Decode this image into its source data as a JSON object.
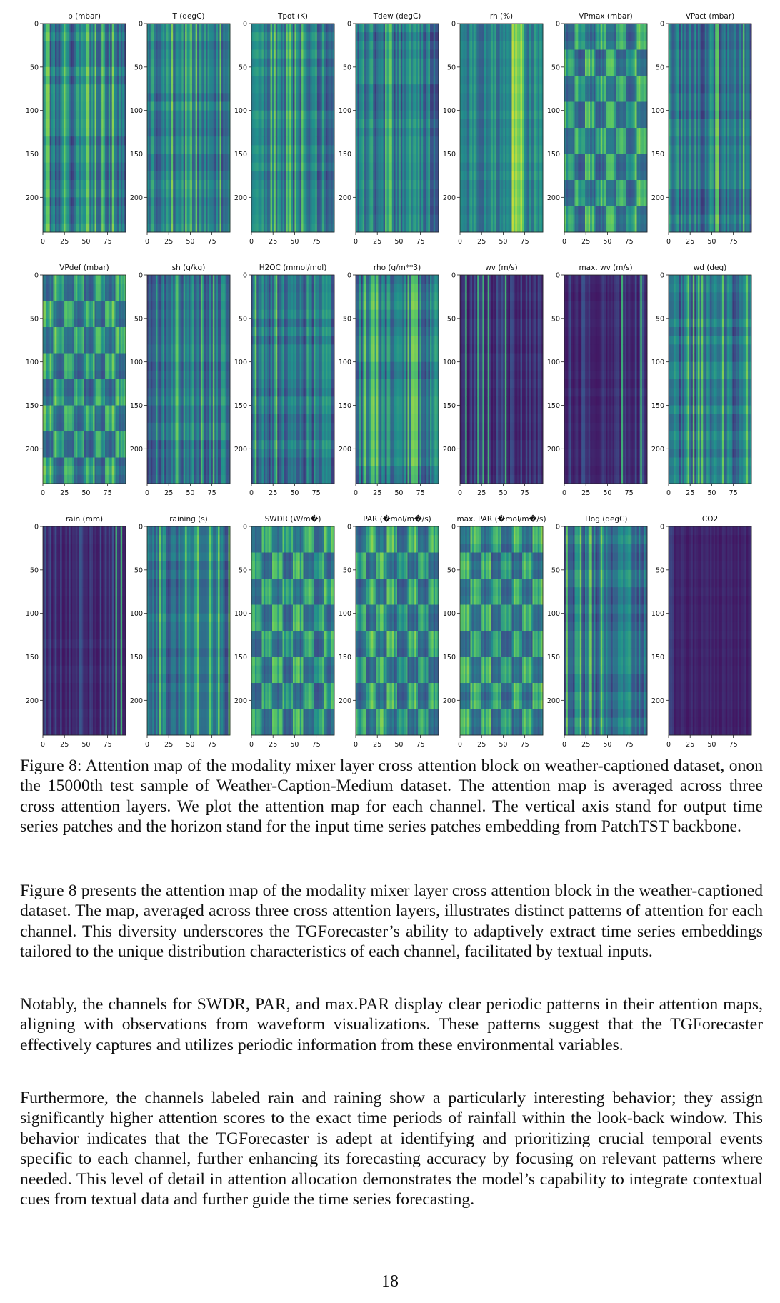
{
  "chart_data": {
    "type": "heatmap",
    "panels": [
      {
        "title": "p (mbar)",
        "pattern": "stripes",
        "seed": 1
      },
      {
        "title": "T (degC)",
        "pattern": "stripes",
        "seed": 2
      },
      {
        "title": "Tpot (K)",
        "pattern": "stripes",
        "seed": 3
      },
      {
        "title": "Tdew (degC)",
        "pattern": "stripes",
        "seed": 4
      },
      {
        "title": "rh (%)",
        "pattern": "bright-band",
        "seed": 5
      },
      {
        "title": "VPmax (mbar)",
        "pattern": "checker",
        "seed": 6
      },
      {
        "title": "VPact (mbar)",
        "pattern": "stripes",
        "seed": 7
      },
      {
        "title": "VPdef (mbar)",
        "pattern": "checker",
        "seed": 8
      },
      {
        "title": "sh (g/kg)",
        "pattern": "stripes",
        "seed": 9
      },
      {
        "title": "H2OC (mmol/mol)",
        "pattern": "stripes",
        "seed": 10
      },
      {
        "title": "rho (g/m**3)",
        "pattern": "stripes",
        "seed": 11
      },
      {
        "title": "wv (m/s)",
        "pattern": "dark-stripes",
        "seed": 12
      },
      {
        "title": "max. wv (m/s)",
        "pattern": "dark-stripes",
        "seed": 13
      },
      {
        "title": "wd (deg)",
        "pattern": "stripes",
        "seed": 14
      },
      {
        "title": "rain (mm)",
        "pattern": "dark-stripes",
        "seed": 15
      },
      {
        "title": "raining (s)",
        "pattern": "stripes",
        "seed": 16
      },
      {
        "title": "SWDR (W/m�)",
        "pattern": "checker",
        "seed": 17
      },
      {
        "title": "PAR (�mol/m�/s)",
        "pattern": "checker",
        "seed": 18
      },
      {
        "title": "max. PAR (�mol/m�/s)",
        "pattern": "checker",
        "seed": 19
      },
      {
        "title": "Tlog (degC)",
        "pattern": "stripes",
        "seed": 20
      },
      {
        "title": "CO2",
        "pattern": "dark",
        "seed": 21
      }
    ],
    "rows": 3,
    "cols": 7,
    "x_ticks": [
      "0",
      "25",
      "50",
      "75"
    ],
    "x_tick_values": [
      0,
      25,
      50,
      75
    ],
    "xlim": [
      0,
      96
    ],
    "y_ticks": [
      "0",
      "50",
      "100",
      "150",
      "200"
    ],
    "y_tick_values": [
      0,
      50,
      100,
      150,
      200
    ],
    "ylim": [
      0,
      240
    ],
    "colormap": "viridis"
  },
  "caption": "Figure 8: Attention map of the modality mixer layer cross attention block on weather-captioned dataset, onon the 15000th test sample of Weather-Caption-Medium dataset. The attention map is averaged across three cross attention layers. We plot the attention map for each channel. The vertical axis stand for output time series patches and the horizon stand for the input time series patches embedding from PatchTST backbone.",
  "paragraphs": [
    "Figure 8 presents the attention map of the modality mixer layer cross attention block in the weather-captioned dataset. The map, averaged across three cross attention layers, illustrates distinct patterns of attention for each channel. This diversity underscores the TGForecaster’s ability to adaptively extract time series embeddings tailored to the unique distribution characteristics of each channel, facilitated by textual inputs.",
    "Notably, the channels for SWDR, PAR, and max.PAR display clear periodic patterns in their attention maps, aligning with observations from waveform visualizations. These patterns suggest that the TGForecaster effectively captures and utilizes periodic information from these environmental variables.",
    "Furthermore, the channels labeled rain and raining show a particularly interesting behavior; they assign significantly higher attention scores to the exact time periods of rainfall within the look-back window. This behavior indicates that the TGForecaster is adept at identifying and prioritizing crucial temporal events specific to each channel, further enhancing its forecasting accuracy by focusing on relevant patterns where needed. This level of detail in attention allocation demonstrates the model’s capability to integrate contextual cues from textual data and further guide the time series forecasting."
  ],
  "page_number": "18"
}
